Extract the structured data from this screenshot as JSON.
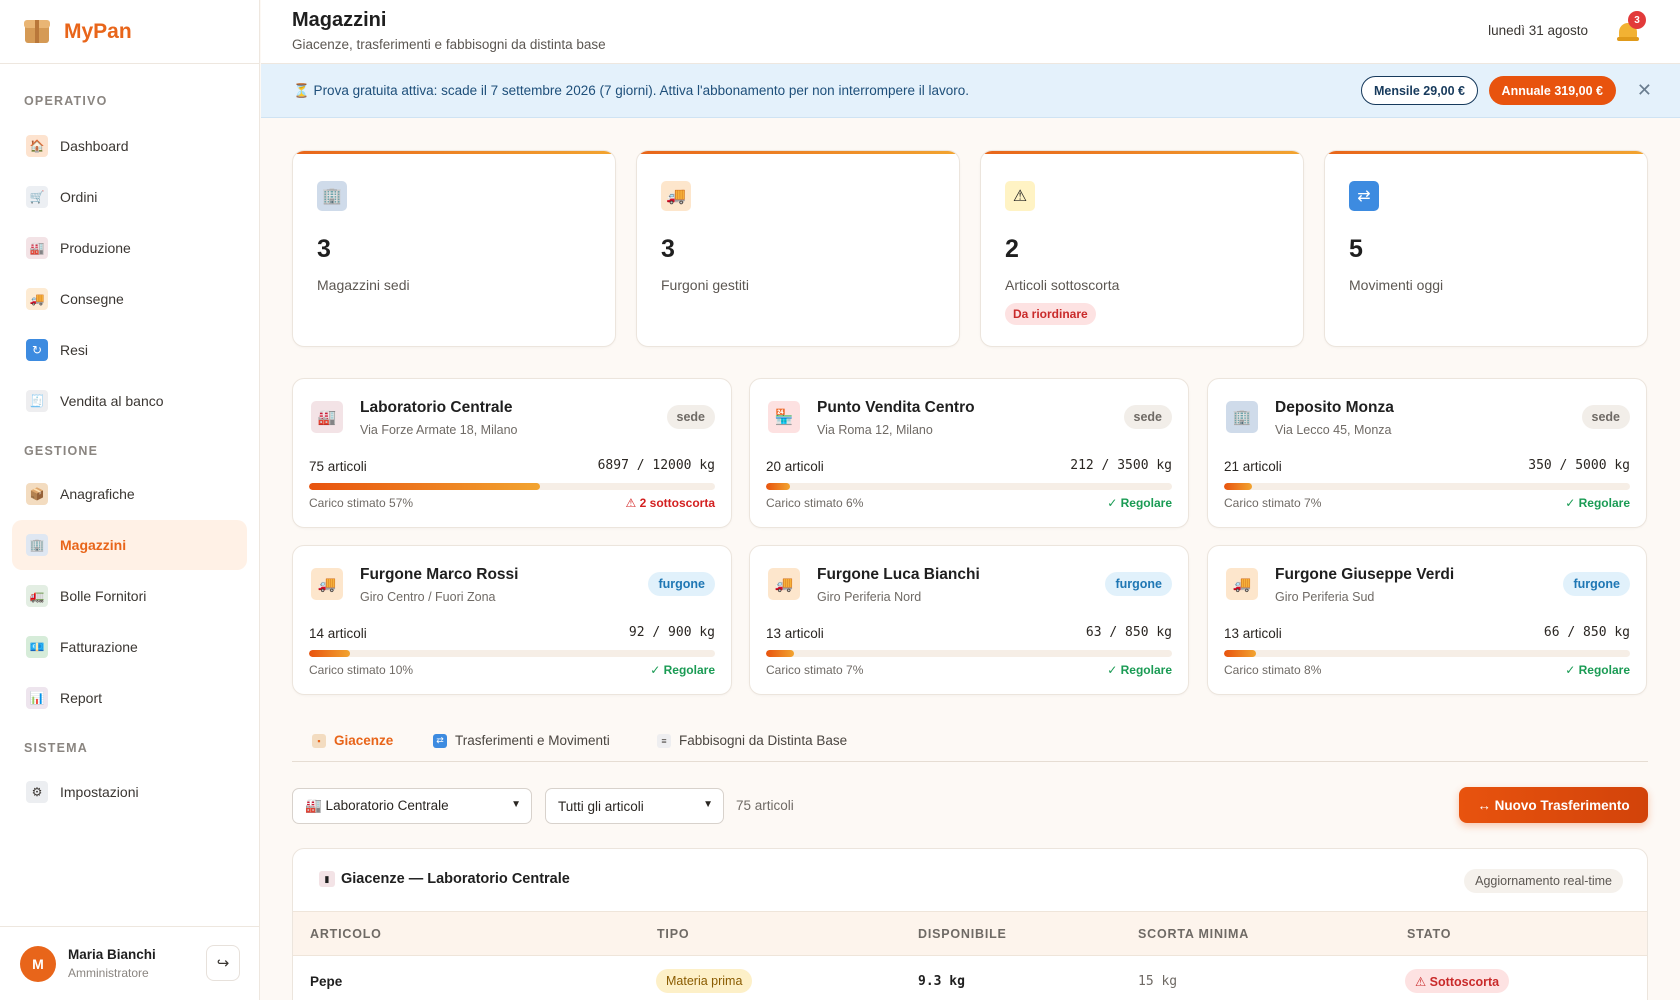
{
  "app": {
    "name": "MyPan"
  },
  "sidebar": {
    "sections": [
      {
        "label": "OPERATIVO",
        "items": [
          {
            "label": "Dashboard",
            "icon": "house-icon"
          },
          {
            "label": "Ordini",
            "icon": "cart-icon"
          },
          {
            "label": "Produzione",
            "icon": "factory-icon"
          },
          {
            "label": "Consegne",
            "icon": "truck-icon"
          },
          {
            "label": "Resi",
            "icon": "return-icon"
          },
          {
            "label": "Vendita al banco",
            "icon": "receipt-icon"
          }
        ]
      },
      {
        "label": "GESTIONE",
        "items": [
          {
            "label": "Anagrafiche",
            "icon": "box-icon"
          },
          {
            "label": "Magazzini",
            "icon": "warehouse-icon",
            "active": true
          },
          {
            "label": "Bolle Fornitori",
            "icon": "supplier-truck-icon"
          },
          {
            "label": "Fatturazione",
            "icon": "invoice-icon"
          },
          {
            "label": "Report",
            "icon": "bar-chart-icon"
          }
        ]
      },
      {
        "label": "SISTEMA",
        "items": [
          {
            "label": "Impostazioni",
            "icon": "gear-icon"
          }
        ]
      }
    ],
    "user": {
      "initial": "M",
      "name": "Maria Bianchi",
      "role": "Amministratore"
    }
  },
  "header": {
    "title": "Magazzini",
    "subtitle": "Giacenze, trasferimenti e fabbisogni da distinta base",
    "date": "lunedì 31 agosto",
    "notifications": "3"
  },
  "banner": {
    "icon": "hourglass-icon",
    "text": "⏳ Prova gratuita attiva: scade il 7 settembre 2026 (7 giorni). Attiva l'abbonamento per non interrompere il lavoro.",
    "monthly": "Mensile 29,00 €",
    "yearly": "Annuale 319,00 €"
  },
  "stats": [
    {
      "value": "3",
      "label": "Magazzini sedi",
      "icon": "building-icon"
    },
    {
      "value": "3",
      "label": "Furgoni gestiti",
      "icon": "truck-icon"
    },
    {
      "value": "2",
      "label": "Articoli sottoscorta",
      "icon": "warning-icon",
      "pill": "Da riordinare"
    },
    {
      "value": "5",
      "label": "Movimenti oggi",
      "icon": "repeat-icon"
    }
  ],
  "warehouses": [
    {
      "name": "Laboratorio Centrale",
      "address": "Via Forze Armate 18, Milano",
      "tag": "sede",
      "articles": "75 articoli",
      "load": "6897 / 12000 kg",
      "load_pct": 57,
      "caption": "Carico stimato 57%",
      "status": "⚠ 2 sottoscorta",
      "status_kind": "warn",
      "icon": "factory-icon"
    },
    {
      "name": "Punto Vendita Centro",
      "address": "Via Roma 12, Milano",
      "tag": "sede",
      "articles": "20 articoli",
      "load": "212 / 3500 kg",
      "load_pct": 6,
      "caption": "Carico stimato 6%",
      "status": "✓ Regolare",
      "status_kind": "ok",
      "icon": "store-icon"
    },
    {
      "name": "Deposito Monza",
      "address": "Via Lecco 45, Monza",
      "tag": "sede",
      "articles": "21 articoli",
      "load": "350 / 5000 kg",
      "load_pct": 7,
      "caption": "Carico stimato 7%",
      "status": "✓ Regolare",
      "status_kind": "ok",
      "icon": "building-icon"
    },
    {
      "name": "Furgone Marco Rossi",
      "address": "Giro Centro / Fuori Zona",
      "tag": "furgone",
      "articles": "14 articoli",
      "load": "92 / 900 kg",
      "load_pct": 10,
      "caption": "Carico stimato 10%",
      "status": "✓ Regolare",
      "status_kind": "ok",
      "icon": "truck-icon"
    },
    {
      "name": "Furgone Luca Bianchi",
      "address": "Giro Periferia Nord",
      "tag": "furgone",
      "articles": "13 articoli",
      "load": "63 / 850 kg",
      "load_pct": 7,
      "caption": "Carico stimato 7%",
      "status": "✓ Regolare",
      "status_kind": "ok",
      "icon": "truck-icon"
    },
    {
      "name": "Furgone Giuseppe Verdi",
      "address": "Giro Periferia Sud",
      "tag": "furgone",
      "articles": "13 articoli",
      "load": "66 / 850 kg",
      "load_pct": 8,
      "caption": "Carico stimato 8%",
      "status": "✓ Regolare",
      "status_kind": "ok",
      "icon": "truck-icon"
    }
  ],
  "tabs": [
    {
      "label": "Giacenze",
      "icon": "box-icon",
      "active": true
    },
    {
      "label": "Trasferimenti e Movimenti",
      "icon": "repeat-icon"
    },
    {
      "label": "Fabbisogni da Distinta Base",
      "icon": "receipt-icon"
    }
  ],
  "filters": {
    "warehouse": "🏭 Laboratorio Centrale",
    "articles": "Tutti gli articoli",
    "count": "75 articoli",
    "new_transfer": "↔ Nuovo Trasferimento"
  },
  "table": {
    "title": "Giacenze — Laboratorio Centrale",
    "badge": "Aggiornamento real-time",
    "columns": [
      "ARTICOLO",
      "TIPO",
      "DISPONIBILE",
      "SCORTA MINIMA",
      "STATO"
    ],
    "rows": [
      {
        "articolo": "Pepe",
        "tipo": "Materia prima",
        "disponibile": "9.3 kg",
        "scorta": "15 kg",
        "stato": "⚠ Sottoscorta"
      }
    ]
  },
  "colors": {
    "accent": "#e8651a",
    "ok": "#1a9b54",
    "warn": "#d32020",
    "banner": "#e4f1fb"
  }
}
